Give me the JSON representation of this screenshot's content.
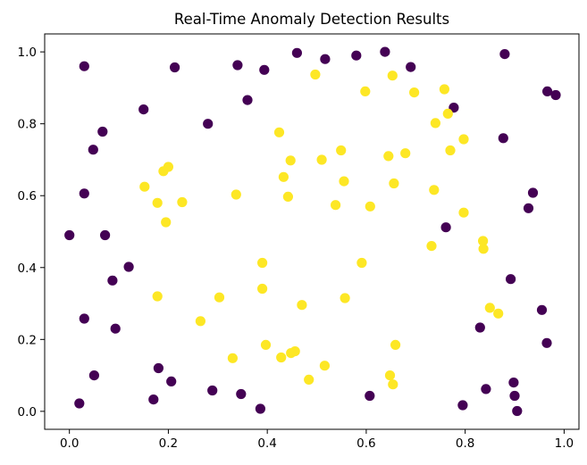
{
  "chart_data": {
    "type": "scatter",
    "title": "Real-Time Anomaly Detection Results",
    "xlabel": "",
    "ylabel": "",
    "xlim": [
      -0.05,
      1.03
    ],
    "ylim": [
      -0.05,
      1.05
    ],
    "x_ticks": [
      0.0,
      0.2,
      0.4,
      0.6,
      0.8,
      1.0
    ],
    "y_ticks": [
      0.0,
      0.2,
      0.4,
      0.6,
      0.8,
      1.0
    ],
    "x_tick_labels": [
      "0.0",
      "0.2",
      "0.4",
      "0.6",
      "0.8",
      "1.0"
    ],
    "y_tick_labels": [
      "0.0",
      "0.2",
      "0.4",
      "0.6",
      "0.8",
      "1.0"
    ],
    "grid": false,
    "legend": "none",
    "colors": {
      "anomaly": "#440154",
      "normal": "#fde725"
    },
    "series": [
      {
        "color": "#440154",
        "points": [
          [
            0.03,
            0.96
          ],
          [
            0.213,
            0.957
          ],
          [
            0.34,
            0.963
          ],
          [
            0.394,
            0.95
          ],
          [
            0.46,
            0.997
          ],
          [
            0.517,
            0.98
          ],
          [
            0.58,
            0.99
          ],
          [
            0.638,
            1.0
          ],
          [
            0.69,
            0.958
          ],
          [
            0.88,
            0.994
          ],
          [
            0.36,
            0.866
          ],
          [
            0.777,
            0.845
          ],
          [
            0.15,
            0.84
          ],
          [
            0.28,
            0.8
          ],
          [
            0.067,
            0.778
          ],
          [
            0.877,
            0.76
          ],
          [
            0.048,
            0.728
          ],
          [
            0.03,
            0.606
          ],
          [
            0.937,
            0.608
          ],
          [
            0.928,
            0.565
          ],
          [
            0.761,
            0.512
          ],
          [
            0.0,
            0.49
          ],
          [
            0.072,
            0.49
          ],
          [
            0.12,
            0.402
          ],
          [
            0.087,
            0.364
          ],
          [
            0.892,
            0.368
          ],
          [
            0.955,
            0.282
          ],
          [
            0.03,
            0.258
          ],
          [
            0.83,
            0.233
          ],
          [
            0.093,
            0.23
          ],
          [
            0.965,
            0.19
          ],
          [
            0.18,
            0.12
          ],
          [
            0.05,
            0.1
          ],
          [
            0.206,
            0.083
          ],
          [
            0.898,
            0.08
          ],
          [
            0.289,
            0.058
          ],
          [
            0.842,
            0.062
          ],
          [
            0.347,
            0.048
          ],
          [
            0.607,
            0.043
          ],
          [
            0.9,
            0.043
          ],
          [
            0.17,
            0.033
          ],
          [
            0.02,
            0.022
          ],
          [
            0.795,
            0.017
          ],
          [
            0.386,
            0.007
          ],
          [
            0.905,
            0.001
          ],
          [
            0.966,
            0.89
          ],
          [
            0.983,
            0.88
          ]
        ]
      },
      {
        "color": "#fde725",
        "points": [
          [
            0.497,
            0.937
          ],
          [
            0.653,
            0.934
          ],
          [
            0.598,
            0.89
          ],
          [
            0.697,
            0.887
          ],
          [
            0.758,
            0.896
          ],
          [
            0.765,
            0.828
          ],
          [
            0.74,
            0.802
          ],
          [
            0.424,
            0.776
          ],
          [
            0.797,
            0.757
          ],
          [
            0.77,
            0.726
          ],
          [
            0.549,
            0.726
          ],
          [
            0.679,
            0.718
          ],
          [
            0.645,
            0.71
          ],
          [
            0.447,
            0.698
          ],
          [
            0.51,
            0.7
          ],
          [
            0.2,
            0.68
          ],
          [
            0.19,
            0.668
          ],
          [
            0.433,
            0.652
          ],
          [
            0.555,
            0.64
          ],
          [
            0.656,
            0.634
          ],
          [
            0.152,
            0.625
          ],
          [
            0.737,
            0.616
          ],
          [
            0.337,
            0.603
          ],
          [
            0.442,
            0.597
          ],
          [
            0.178,
            0.58
          ],
          [
            0.228,
            0.582
          ],
          [
            0.538,
            0.574
          ],
          [
            0.608,
            0.57
          ],
          [
            0.797,
            0.553
          ],
          [
            0.195,
            0.526
          ],
          [
            0.836,
            0.474
          ],
          [
            0.732,
            0.46
          ],
          [
            0.837,
            0.452
          ],
          [
            0.39,
            0.413
          ],
          [
            0.591,
            0.413
          ],
          [
            0.39,
            0.341
          ],
          [
            0.178,
            0.32
          ],
          [
            0.303,
            0.317
          ],
          [
            0.557,
            0.315
          ],
          [
            0.47,
            0.296
          ],
          [
            0.85,
            0.288
          ],
          [
            0.867,
            0.272
          ],
          [
            0.265,
            0.251
          ],
          [
            0.397,
            0.185
          ],
          [
            0.659,
            0.185
          ],
          [
            0.456,
            0.167
          ],
          [
            0.448,
            0.162
          ],
          [
            0.428,
            0.15
          ],
          [
            0.33,
            0.148
          ],
          [
            0.516,
            0.127
          ],
          [
            0.648,
            0.1
          ],
          [
            0.484,
            0.088
          ],
          [
            0.654,
            0.075
          ]
        ]
      }
    ]
  }
}
